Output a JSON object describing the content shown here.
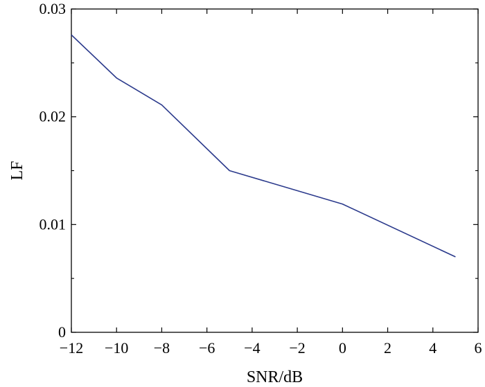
{
  "chart_data": {
    "type": "line",
    "xlabel": "SNR/dB",
    "ylabel": "LF",
    "xlim": [
      -12,
      6
    ],
    "ylim": [
      0,
      0.03
    ],
    "x_ticks": [
      -12,
      -10,
      -8,
      -6,
      -4,
      -2,
      0,
      2,
      4,
      6
    ],
    "x_tick_labels": [
      "−12",
      "−10",
      "−8",
      "−6",
      "−4",
      "−2",
      "0",
      "2",
      "4",
      "6"
    ],
    "y_ticks": [
      0,
      0.01,
      0.02,
      0.03
    ],
    "y_tick_labels": [
      "0",
      "0.01",
      "0.02",
      "0.03"
    ],
    "y_minor_ticks": [
      0.005,
      0.015,
      0.025
    ],
    "grid": false,
    "series": [
      {
        "color": "#2b3a8c",
        "x": [
          -12,
          -10,
          -8,
          -5,
          0,
          5
        ],
        "y": [
          0.0276,
          0.0236,
          0.0211,
          0.015,
          0.0119,
          0.007
        ]
      }
    ]
  }
}
